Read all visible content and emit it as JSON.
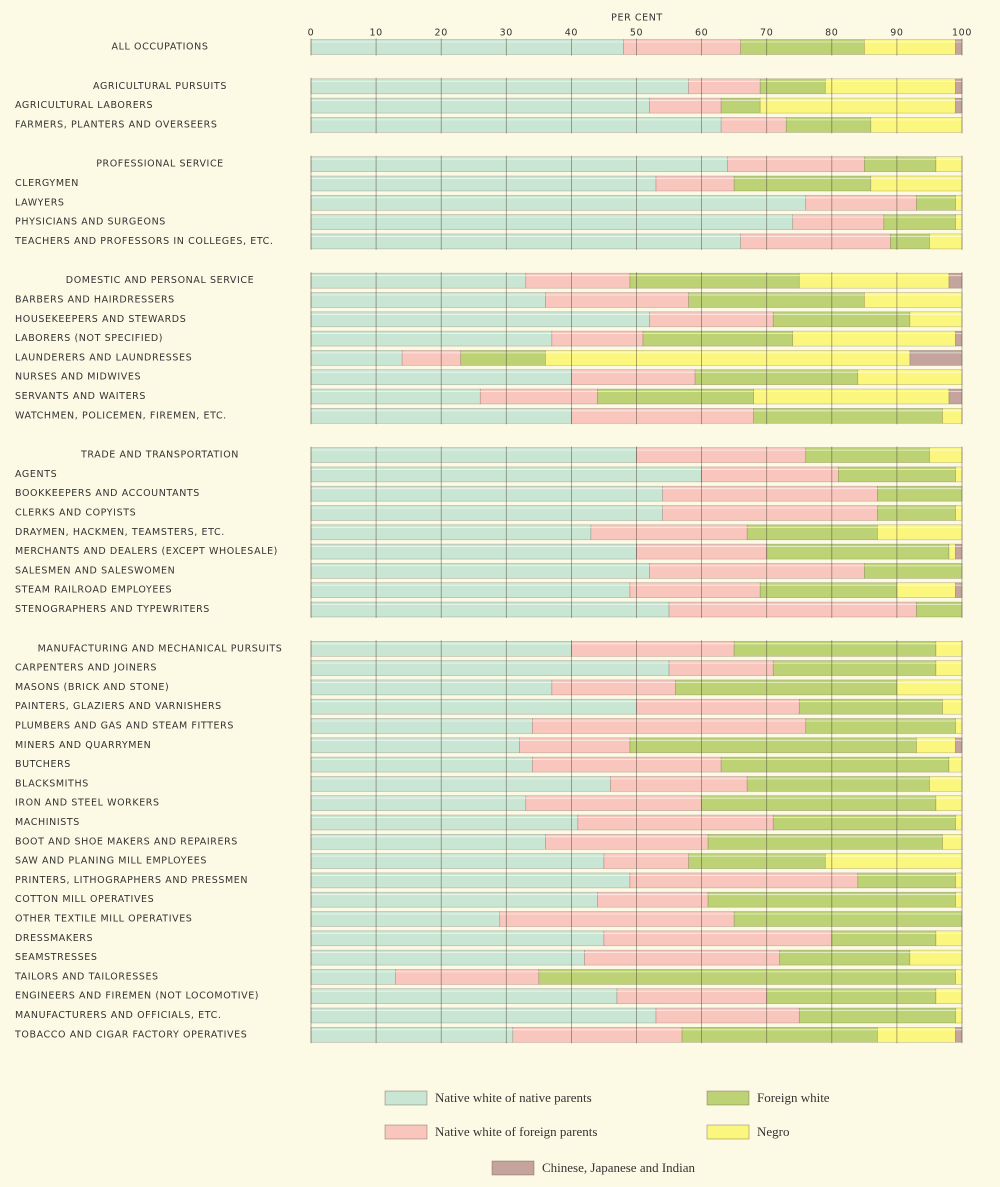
{
  "chart_data": {
    "type": "stacked-barh",
    "xlabel": "PER CENT",
    "xlim": [
      0,
      100
    ],
    "xticks": [
      0,
      10,
      20,
      30,
      40,
      50,
      60,
      70,
      80,
      90,
      100
    ],
    "grid": true,
    "categories": [
      "ALL OCCUPATIONS",
      "AGRICULTURAL PURSUITS",
      "AGRICULTURAL LABORERS",
      "FARMERS, PLANTERS AND OVERSEERS",
      "PROFESSIONAL SERVICE",
      "CLERGYMEN",
      "LAWYERS",
      "PHYSICIANS AND SURGEONS",
      "TEACHERS AND PROFESSORS IN COLLEGES, ETC.",
      "DOMESTIC AND PERSONAL SERVICE",
      "BARBERS AND HAIRDRESSERS",
      "HOUSEKEEPERS AND STEWARDS",
      "LABORERS (NOT SPECIFIED)",
      "LAUNDERERS AND LAUNDRESSES",
      "NURSES AND MIDWIVES",
      "SERVANTS AND WAITERS",
      "WATCHMEN, POLICEMEN, FIREMEN, ETC.",
      "TRADE AND TRANSPORTATION",
      "AGENTS",
      "BOOKKEEPERS AND ACCOUNTANTS",
      "CLERKS AND COPYISTS",
      "DRAYMEN, HACKMEN, TEAMSTERS, ETC.",
      "MERCHANTS AND DEALERS (EXCEPT WHOLESALE)",
      "SALESMEN AND SALESWOMEN",
      "STEAM RAILROAD EMPLOYEES",
      "STENOGRAPHERS AND TYPEWRITERS",
      "MANUFACTURING AND MECHANICAL PURSUITS",
      "CARPENTERS AND JOINERS",
      "MASONS (BRICK AND STONE)",
      "PAINTERS, GLAZIERS AND VARNISHERS",
      "PLUMBERS AND GAS AND STEAM FITTERS",
      "MINERS AND QUARRYMEN",
      "BUTCHERS",
      "BLACKSMITHS",
      "IRON AND STEEL WORKERS",
      "MACHINISTS",
      "BOOT AND SHOE MAKERS AND REPAIRERS",
      "SAW AND PLANING MILL EMPLOYEES",
      "PRINTERS, LITHOGRAPHERS AND PRESSMEN",
      "COTTON MILL OPERATIVES",
      "OTHER TEXTILE MILL OPERATIVES",
      "DRESSMAKERS",
      "SEAMSTRESSES",
      "TAILORS AND TAILORESSES",
      "ENGINEERS AND FIREMEN (NOT LOCOMOTIVE)",
      "MANUFACTURERS AND OFFICIALS, ETC.",
      "TOBACCO AND CIGAR FACTORY OPERATIVES"
    ],
    "series": [
      {
        "name": "Native white of native parents",
        "color": "#c9e5d3",
        "values": [
          48,
          58,
          52,
          63,
          64,
          53,
          76,
          74,
          66,
          33,
          36,
          52,
          37,
          14,
          40,
          26,
          40,
          50,
          60,
          54,
          54,
          43,
          50,
          52,
          49,
          55,
          40,
          55,
          37,
          50,
          34,
          32,
          34,
          46,
          33,
          41,
          36,
          45,
          49,
          44,
          29,
          45,
          42,
          13,
          47,
          53,
          31
        ]
      },
      {
        "name": "Native white of foreign parents",
        "color": "#f8c6bd",
        "values": [
          18,
          11,
          11,
          10,
          21,
          12,
          17,
          14,
          23,
          16,
          22,
          19,
          14,
          9,
          19,
          18,
          28,
          26,
          21,
          33,
          33,
          24,
          20,
          33,
          20,
          38,
          25,
          16,
          19,
          25,
          42,
          17,
          29,
          21,
          27,
          30,
          25,
          13,
          35,
          17,
          36,
          35,
          30,
          22,
          23,
          22,
          26
        ]
      },
      {
        "name": "Foreign white",
        "color": "#bcd274",
        "values": [
          19,
          10,
          6,
          13,
          11,
          21,
          6,
          11,
          6,
          26,
          27,
          21,
          23,
          13,
          25,
          24,
          29,
          19,
          18,
          13,
          12,
          20,
          28,
          15,
          21,
          7,
          31,
          25,
          34,
          22,
          23,
          44,
          35,
          28,
          36,
          28,
          36,
          21,
          15,
          38,
          35,
          16,
          20,
          64,
          26,
          24,
          30
        ]
      },
      {
        "name": "Negro",
        "color": "#fbf77e",
        "values": [
          14,
          20,
          30,
          14,
          4,
          14,
          1,
          1,
          5,
          23,
          15,
          8,
          25,
          56,
          16,
          30,
          3,
          5,
          1,
          0,
          1,
          13,
          1,
          0,
          9,
          0,
          4,
          4,
          10,
          3,
          1,
          6,
          2,
          5,
          4,
          1,
          3,
          21,
          1,
          1,
          0,
          4,
          8,
          1,
          4,
          1,
          12
        ]
      },
      {
        "name": "Chinese, Japanese and Indian",
        "color": "#c4a49c",
        "values": [
          1,
          1,
          1,
          0,
          0,
          0,
          0,
          0,
          0,
          2,
          0,
          0,
          1,
          8,
          0,
          2,
          0,
          0,
          0,
          0,
          0,
          0,
          1,
          0,
          1,
          0,
          0,
          0,
          0,
          0,
          0,
          1,
          0,
          0,
          0,
          0,
          0,
          0,
          0,
          0,
          0,
          0,
          0,
          0,
          0,
          0,
          1
        ]
      }
    ]
  }
}
